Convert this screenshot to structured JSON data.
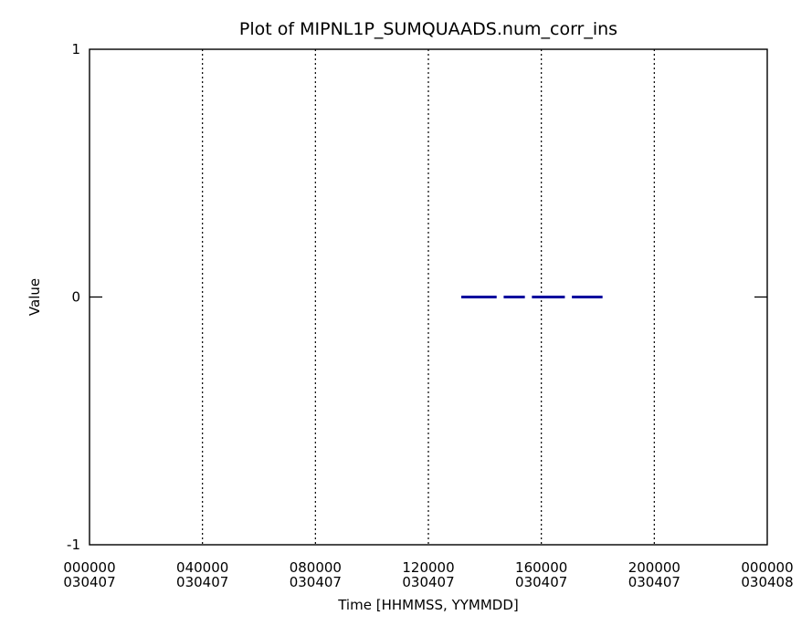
{
  "chart_data": {
    "type": "line",
    "title": "Plot of MIPNL1P_SUMQUAADS.num_corr_ins",
    "xlabel": "Time [HHMMSS, YYMMDD]",
    "ylabel": "Value",
    "ylim": [
      -1,
      1
    ],
    "xlim": [
      "2003-04-07 00:00:00",
      "2003-04-08 00:00:00"
    ],
    "yticks": [
      {
        "value": 1,
        "label": "1"
      },
      {
        "value": 0,
        "label": "0"
      },
      {
        "value": -1,
        "label": "-1"
      }
    ],
    "xticks": [
      {
        "value": "2003-04-07 00:00:00",
        "time": "000000",
        "date": "030407"
      },
      {
        "value": "2003-04-07 04:00:00",
        "time": "040000",
        "date": "030407"
      },
      {
        "value": "2003-04-07 08:00:00",
        "time": "080000",
        "date": "030407"
      },
      {
        "value": "2003-04-07 12:00:00",
        "time": "120000",
        "date": "030407"
      },
      {
        "value": "2003-04-07 16:00:00",
        "time": "160000",
        "date": "030407"
      },
      {
        "value": "2003-04-07 20:00:00",
        "time": "200000",
        "date": "030407"
      },
      {
        "value": "2003-04-08 00:00:00",
        "time": "000000",
        "date": "030408"
      }
    ],
    "grid": "vertical dotted lines at interior x ticks",
    "series": [
      {
        "color": "#00009e",
        "segments": [
          {
            "x": [
              "2003-04-07 13:10:00",
              "2003-04-07 14:25:00"
            ],
            "y": [
              0,
              0
            ]
          },
          {
            "x": [
              "2003-04-07 14:40:00",
              "2003-04-07 15:25:00"
            ],
            "y": [
              0,
              0
            ]
          },
          {
            "x": [
              "2003-04-07 15:40:00",
              "2003-04-07 16:50:00"
            ],
            "y": [
              0,
              0
            ]
          },
          {
            "x": [
              "2003-04-07 17:05:00",
              "2003-04-07 18:10:00"
            ],
            "y": [
              0,
              0
            ]
          }
        ]
      }
    ]
  }
}
